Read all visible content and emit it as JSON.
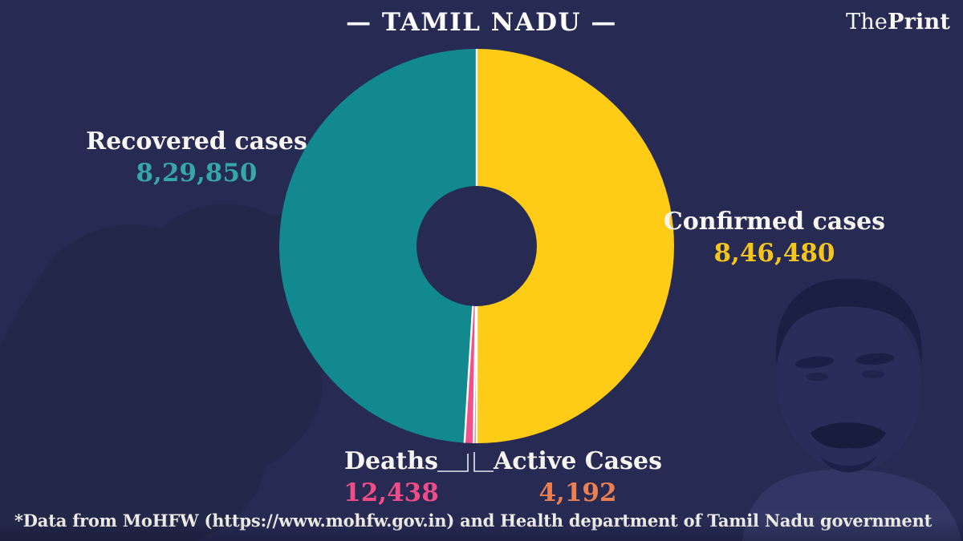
{
  "theme": {
    "background": "#272B54",
    "text": "#F8F6F1",
    "separator": "#FFFFFF"
  },
  "header": {
    "title": "— TAMIL NADU —",
    "brand_regular": "The",
    "brand_bold": "Print"
  },
  "chart_data": {
    "type": "pie",
    "subtype": "donut",
    "title": "TAMIL NADU",
    "clockwise_from": "top",
    "legend_position": "none",
    "separator_color": "#FFFFFF",
    "layout_note": "Right half of donut = confirmed total; left half is split proportionally into recovered + deaths + active (which sum to confirmed)",
    "slices": [
      {
        "name": "Confirmed cases",
        "value": 846480,
        "display": "8,46,480",
        "color": "#FECB16",
        "label_color": "#F5C51B"
      },
      {
        "name": "Active Cases",
        "value": 4192,
        "display": "4,192",
        "color": "#ED8050",
        "label_color": "#ED8050"
      },
      {
        "name": "Deaths",
        "value": 12438,
        "display": "12,438",
        "color": "#F2508B",
        "label_color": "#F04C86"
      },
      {
        "name": "Recovered cases",
        "value": 829850,
        "display": "8,29,850",
        "color": "#12898E",
        "label_color": "#35A7A9"
      }
    ]
  },
  "footer": {
    "source": "*Data from MoHFW (https://www.mohfw.gov.in) and Health department of Tamil Nadu government"
  }
}
